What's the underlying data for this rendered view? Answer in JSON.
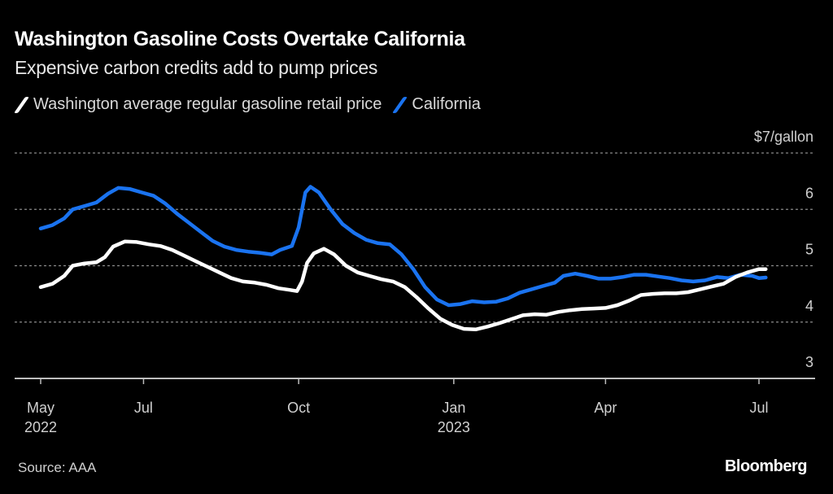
{
  "header": {
    "title": "Washington Gasoline Costs Overtake California",
    "subtitle": "Expensive carbon credits add to pump prices"
  },
  "footer": {
    "source": "Source: AAA",
    "brand": "Bloomberg"
  },
  "colors": {
    "background": "#000000",
    "washington": "#ffffff",
    "california": "#1a73f0",
    "grid": "#8a8a8a"
  },
  "chart_data": {
    "type": "line",
    "title": "Washington Gasoline Costs Overtake California",
    "subtitle": "Expensive carbon credits add to pump prices",
    "xlabel": "",
    "ylabel": "$/gallon",
    "ylim": [
      3,
      7
    ],
    "xlim": [
      "2022-05-01",
      "2023-08-01"
    ],
    "grid": true,
    "legend_position": "top-left",
    "y_ticks": [
      {
        "value": 3,
        "label": "3"
      },
      {
        "value": 4,
        "label": "4"
      },
      {
        "value": 5,
        "label": "5"
      },
      {
        "value": 6,
        "label": "6"
      },
      {
        "value": 7,
        "label": "$7/gallon"
      }
    ],
    "x_ticks": [
      {
        "date": "2022-05-01",
        "label": "May",
        "sublabel": "2022"
      },
      {
        "date": "2022-07-01",
        "label": "Jul",
        "sublabel": ""
      },
      {
        "date": "2022-10-01",
        "label": "Oct",
        "sublabel": ""
      },
      {
        "date": "2023-01-01",
        "label": "Jan",
        "sublabel": "2023"
      },
      {
        "date": "2023-04-01",
        "label": "Apr",
        "sublabel": ""
      },
      {
        "date": "2023-07-01",
        "label": "Jul",
        "sublabel": ""
      }
    ],
    "series": [
      {
        "name": "Washington average regular gasoline retail price",
        "color": "#ffffff",
        "points": [
          [
            "2022-05-01",
            4.62
          ],
          [
            "2022-05-08",
            4.68
          ],
          [
            "2022-05-15",
            4.82
          ],
          [
            "2022-05-20",
            5.0
          ],
          [
            "2022-05-27",
            5.04
          ],
          [
            "2022-06-03",
            5.06
          ],
          [
            "2022-06-08",
            5.15
          ],
          [
            "2022-06-13",
            5.34
          ],
          [
            "2022-06-20",
            5.43
          ],
          [
            "2022-06-27",
            5.42
          ],
          [
            "2022-07-04",
            5.38
          ],
          [
            "2022-07-11",
            5.35
          ],
          [
            "2022-07-18",
            5.28
          ],
          [
            "2022-07-25",
            5.18
          ],
          [
            "2022-08-01",
            5.08
          ],
          [
            "2022-08-08",
            4.98
          ],
          [
            "2022-08-15",
            4.88
          ],
          [
            "2022-08-22",
            4.78
          ],
          [
            "2022-08-29",
            4.72
          ],
          [
            "2022-09-05",
            4.7
          ],
          [
            "2022-09-12",
            4.66
          ],
          [
            "2022-09-19",
            4.6
          ],
          [
            "2022-09-26",
            4.57
          ],
          [
            "2022-09-30",
            4.55
          ],
          [
            "2022-10-03",
            4.72
          ],
          [
            "2022-10-06",
            5.05
          ],
          [
            "2022-10-10",
            5.22
          ],
          [
            "2022-10-16",
            5.3
          ],
          [
            "2022-10-22",
            5.2
          ],
          [
            "2022-10-29",
            5.0
          ],
          [
            "2022-11-05",
            4.88
          ],
          [
            "2022-11-12",
            4.82
          ],
          [
            "2022-11-19",
            4.76
          ],
          [
            "2022-11-26",
            4.72
          ],
          [
            "2022-12-03",
            4.62
          ],
          [
            "2022-12-10",
            4.44
          ],
          [
            "2022-12-17",
            4.24
          ],
          [
            "2022-12-24",
            4.06
          ],
          [
            "2022-12-31",
            3.95
          ],
          [
            "2023-01-07",
            3.88
          ],
          [
            "2023-01-14",
            3.87
          ],
          [
            "2023-01-21",
            3.92
          ],
          [
            "2023-01-28",
            3.98
          ],
          [
            "2023-02-04",
            4.05
          ],
          [
            "2023-02-11",
            4.12
          ],
          [
            "2023-02-18",
            4.14
          ],
          [
            "2023-02-25",
            4.13
          ],
          [
            "2023-03-04",
            4.18
          ],
          [
            "2023-03-11",
            4.21
          ],
          [
            "2023-03-18",
            4.23
          ],
          [
            "2023-03-25",
            4.24
          ],
          [
            "2023-04-01",
            4.25
          ],
          [
            "2023-04-08",
            4.3
          ],
          [
            "2023-04-15",
            4.38
          ],
          [
            "2023-04-22",
            4.48
          ],
          [
            "2023-04-29",
            4.5
          ],
          [
            "2023-05-06",
            4.51
          ],
          [
            "2023-05-13",
            4.51
          ],
          [
            "2023-05-20",
            4.53
          ],
          [
            "2023-05-27",
            4.58
          ],
          [
            "2023-06-03",
            4.63
          ],
          [
            "2023-06-10",
            4.68
          ],
          [
            "2023-06-17",
            4.8
          ],
          [
            "2023-06-24",
            4.88
          ],
          [
            "2023-07-01",
            4.94
          ],
          [
            "2023-07-05",
            4.94
          ]
        ]
      },
      {
        "name": "California",
        "color": "#1a73f0",
        "points": [
          [
            "2022-05-01",
            5.66
          ],
          [
            "2022-05-08",
            5.72
          ],
          [
            "2022-05-15",
            5.84
          ],
          [
            "2022-05-20",
            6.0
          ],
          [
            "2022-05-27",
            6.06
          ],
          [
            "2022-06-03",
            6.12
          ],
          [
            "2022-06-10",
            6.28
          ],
          [
            "2022-06-16",
            6.38
          ],
          [
            "2022-06-23",
            6.36
          ],
          [
            "2022-06-30",
            6.3
          ],
          [
            "2022-07-07",
            6.24
          ],
          [
            "2022-07-14",
            6.1
          ],
          [
            "2022-07-21",
            5.92
          ],
          [
            "2022-07-28",
            5.76
          ],
          [
            "2022-08-04",
            5.6
          ],
          [
            "2022-08-11",
            5.44
          ],
          [
            "2022-08-18",
            5.34
          ],
          [
            "2022-08-25",
            5.28
          ],
          [
            "2022-09-01",
            5.25
          ],
          [
            "2022-09-08",
            5.23
          ],
          [
            "2022-09-15",
            5.2
          ],
          [
            "2022-09-20",
            5.28
          ],
          [
            "2022-09-27",
            5.35
          ],
          [
            "2022-10-01",
            5.68
          ],
          [
            "2022-10-05",
            6.3
          ],
          [
            "2022-10-08",
            6.4
          ],
          [
            "2022-10-13",
            6.3
          ],
          [
            "2022-10-20",
            6.0
          ],
          [
            "2022-10-27",
            5.74
          ],
          [
            "2022-11-03",
            5.58
          ],
          [
            "2022-11-10",
            5.46
          ],
          [
            "2022-11-17",
            5.4
          ],
          [
            "2022-11-24",
            5.38
          ],
          [
            "2022-12-01",
            5.2
          ],
          [
            "2022-12-08",
            4.94
          ],
          [
            "2022-12-15",
            4.62
          ],
          [
            "2022-12-22",
            4.4
          ],
          [
            "2022-12-29",
            4.3
          ],
          [
            "2023-01-05",
            4.32
          ],
          [
            "2023-01-12",
            4.37
          ],
          [
            "2023-01-19",
            4.35
          ],
          [
            "2023-01-26",
            4.36
          ],
          [
            "2023-02-02",
            4.42
          ],
          [
            "2023-02-09",
            4.52
          ],
          [
            "2023-02-16",
            4.58
          ],
          [
            "2023-02-23",
            4.64
          ],
          [
            "2023-03-02",
            4.7
          ],
          [
            "2023-03-07",
            4.82
          ],
          [
            "2023-03-14",
            4.86
          ],
          [
            "2023-03-21",
            4.82
          ],
          [
            "2023-03-28",
            4.77
          ],
          [
            "2023-04-04",
            4.77
          ],
          [
            "2023-04-11",
            4.8
          ],
          [
            "2023-04-18",
            4.84
          ],
          [
            "2023-04-25",
            4.84
          ],
          [
            "2023-05-02",
            4.81
          ],
          [
            "2023-05-09",
            4.78
          ],
          [
            "2023-05-16",
            4.74
          ],
          [
            "2023-05-23",
            4.72
          ],
          [
            "2023-05-30",
            4.74
          ],
          [
            "2023-06-06",
            4.8
          ],
          [
            "2023-06-13",
            4.78
          ],
          [
            "2023-06-20",
            4.84
          ],
          [
            "2023-06-27",
            4.82
          ],
          [
            "2023-07-01",
            4.78
          ],
          [
            "2023-07-05",
            4.79
          ]
        ]
      }
    ]
  }
}
